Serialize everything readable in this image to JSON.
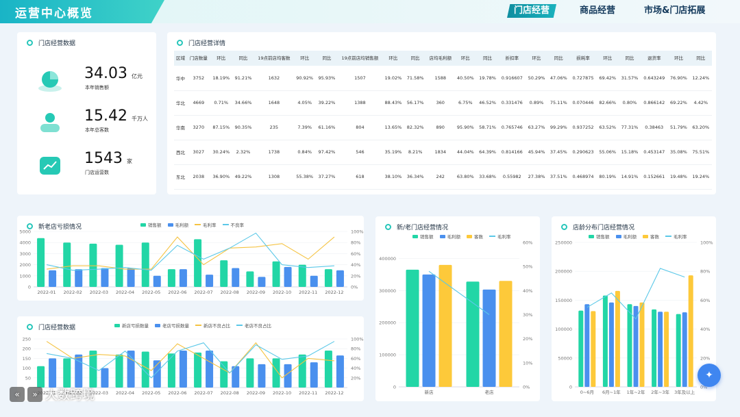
{
  "header": {
    "title": "运营中心概览",
    "nav": [
      "门店经营",
      "商品经营",
      "市场&门店拓展"
    ],
    "active_nav": 0
  },
  "store_data": {
    "title": "门店经营数据",
    "kpis": [
      {
        "value": "34.03",
        "unit": "亿元",
        "label": "本年销售额",
        "icon": "sales-icon"
      },
      {
        "value": "15.42",
        "unit": "千万人",
        "label": "本年总客数",
        "icon": "customers-icon"
      },
      {
        "value": "1543",
        "unit": "家",
        "label": "门店运营数",
        "icon": "stores-icon"
      }
    ]
  },
  "detail": {
    "title": "门店经营详情",
    "headers": [
      "区域",
      "门店数量",
      "环比",
      "同比",
      "19点前店均客数",
      "环比",
      "同比",
      "19点前店均销售额",
      "环比",
      "同比",
      "店均毛利额",
      "环比",
      "同比",
      "折扣率",
      "环比",
      "同比",
      "损耗率",
      "环比",
      "同比",
      "退货率",
      "环比",
      "同比"
    ],
    "rows": [
      [
        "华中",
        "3752",
        "18.19%",
        "91.21%",
        "1632",
        "90.92%",
        "95.93%",
        "1507",
        "19.02%",
        "71.58%",
        "1588",
        "40.50%",
        "19.78%",
        "0.916607",
        "50.29%",
        "47.06%",
        "0.727875",
        "69.42%",
        "31.57%",
        "0.643249",
        "76.90%",
        "12.24%"
      ],
      [
        "华北",
        "4669",
        "0.71%",
        "34.66%",
        "1648",
        "4.05%",
        "39.22%",
        "1388",
        "88.43%",
        "56.17%",
        "360",
        "6.75%",
        "46.52%",
        "0.331476",
        "0.89%",
        "75.11%",
        "0.070446",
        "82.66%",
        "0.80%",
        "0.866142",
        "69.22%",
        "4.42%"
      ],
      [
        "华南",
        "3270",
        "87.15%",
        "90.35%",
        "235",
        "7.39%",
        "61.16%",
        "804",
        "13.65%",
        "82.32%",
        "890",
        "95.90%",
        "58.71%",
        "0.765746",
        "63.27%",
        "99.29%",
        "0.937252",
        "63.52%",
        "77.31%",
        "0.38463",
        "51.79%",
        "63.20%"
      ],
      [
        "西北",
        "3027",
        "30.24%",
        "2.32%",
        "1738",
        "0.84%",
        "97.42%",
        "546",
        "35.19%",
        "8.21%",
        "1834",
        "44.04%",
        "64.39%",
        "0.814166",
        "45.94%",
        "37.45%",
        "0.290623",
        "55.06%",
        "15.18%",
        "0.453147",
        "35.08%",
        "75.51%"
      ],
      [
        "东北",
        "2038",
        "36.90%",
        "49.22%",
        "1308",
        "55.38%",
        "37.27%",
        "618",
        "38.10%",
        "36.34%",
        "242",
        "63.80%",
        "33.68%",
        "0.55982",
        "27.38%",
        "37.51%",
        "0.468974",
        "80.19%",
        "14.91%",
        "0.152661",
        "19.48%",
        "19.24%"
      ]
    ]
  },
  "chart_data": [
    {
      "type": "bar",
      "title": "新老店亏损情况",
      "categories": [
        "2022-01",
        "2022-02",
        "2022-03",
        "2022-04",
        "2022-05",
        "2022-06",
        "2022-07",
        "2022-08",
        "2022-09",
        "2022-10",
        "2022-11",
        "2022-12"
      ],
      "ylim": [
        0,
        5000
      ],
      "yticks": [
        "0",
        "1000",
        "2000",
        "3000",
        "4000",
        "5000"
      ],
      "y2lim": [
        0,
        100
      ],
      "y2ticks": [
        "0%",
        "20%",
        "40%",
        "60%",
        "80%",
        "100%"
      ],
      "series": [
        {
          "name": "销售额",
          "kind": "bar",
          "color": "#22d6a6",
          "values": [
            4400,
            4000,
            3900,
            3800,
            4000,
            1600,
            4300,
            2400,
            1400,
            2300,
            2000,
            1600
          ]
        },
        {
          "name": "毛利额",
          "kind": "bar",
          "color": "#4a90ee",
          "values": [
            1500,
            1600,
            1700,
            1700,
            1000,
            1600,
            1100,
            1700,
            900,
            1800,
            1000,
            1500
          ]
        },
        {
          "name": "毛利率",
          "kind": "line",
          "color": "#f5c342",
          "values": [
            32,
            38,
            38,
            32,
            32,
            90,
            40,
            70,
            72,
            78,
            50,
            90
          ]
        },
        {
          "name": "不良率",
          "kind": "line",
          "color": "#5bc8e8",
          "values": [
            40,
            30,
            32,
            35,
            30,
            75,
            50,
            70,
            97,
            40,
            35,
            38
          ]
        }
      ],
      "legend": [
        "销售额",
        "毛利额",
        "毛利率",
        "不良率"
      ]
    },
    {
      "type": "bar",
      "title": "门店经营数据",
      "categories": [
        "2022-01",
        "2022-02",
        "2022-03",
        "2022-04",
        "2022-05",
        "2022-06",
        "2022-07",
        "2022-08",
        "2022-09",
        "2022-10",
        "2022-11",
        "2022-12"
      ],
      "ylim": [
        0,
        250
      ],
      "yticks": [
        "50",
        "100",
        "150",
        "200",
        "250"
      ],
      "y2lim": [
        0,
        100
      ],
      "y2ticks": [
        "20%",
        "40%",
        "60%",
        "80%",
        "100%"
      ],
      "series": [
        {
          "name": "新店亏损数量",
          "kind": "bar",
          "color": "#22d6a6",
          "values": [
            110,
            150,
            190,
            170,
            185,
            175,
            180,
            135,
            150,
            150,
            170,
            190
          ]
        },
        {
          "name": "老店亏损数量",
          "kind": "bar",
          "color": "#4a90ee",
          "values": [
            150,
            170,
            100,
            190,
            140,
            190,
            190,
            110,
            120,
            120,
            130,
            165
          ]
        },
        {
          "name": "新店不良占比",
          "kind": "line",
          "color": "#f5c342",
          "values": [
            95,
            60,
            68,
            65,
            35,
            90,
            60,
            30,
            92,
            20,
            60,
            55
          ]
        },
        {
          "name": "老店不良占比",
          "kind": "line",
          "color": "#5bc8e8",
          "values": [
            70,
            60,
            35,
            75,
            20,
            75,
            92,
            30,
            88,
            58,
            65,
            95
          ]
        }
      ],
      "legend": [
        "新店亏损数量",
        "老店亏损数量",
        "新店不良占比",
        "老店不良占比"
      ]
    },
    {
      "type": "bar",
      "title": "新/老门店经营情况",
      "categories": [
        "新店",
        "老店"
      ],
      "ylim": [
        0,
        450000
      ],
      "yticks": [
        "0",
        "100000",
        "200000",
        "300000",
        "400000"
      ],
      "y2lim": [
        0,
        60
      ],
      "y2ticks": [
        "0%",
        "10%",
        "20%",
        "30%",
        "40%",
        "50%",
        "60%"
      ],
      "series": [
        {
          "name": "销售额",
          "kind": "bar",
          "color": "#22d6a6",
          "values": [
            365000,
            328000
          ]
        },
        {
          "name": "毛利额",
          "kind": "bar",
          "color": "#4a90ee",
          "values": [
            350000,
            303000
          ]
        },
        {
          "name": "客数",
          "kind": "bar",
          "color": "#fdc93a",
          "values": [
            380000,
            330000
          ]
        },
        {
          "name": "毛利率",
          "kind": "line",
          "color": "#5bc8e8",
          "values": [
            48,
            30
          ]
        }
      ],
      "legend": [
        "销售额",
        "毛利额",
        "客数",
        "毛利率"
      ]
    },
    {
      "type": "bar",
      "title": "店龄分布门店经营情况",
      "categories": [
        "0~6月",
        "6月~1年",
        "1年~2年",
        "2年~3年",
        "3年及以上"
      ],
      "ylim": [
        0,
        250000
      ],
      "yticks": [
        "0",
        "50000",
        "100000",
        "150000",
        "200000",
        "250000"
      ],
      "y2lim": [
        0,
        100
      ],
      "y2ticks": [
        "0%",
        "20%",
        "40%",
        "60%",
        "80%",
        "100%"
      ],
      "series": [
        {
          "name": "销售额",
          "kind": "bar",
          "color": "#22d6a6",
          "values": [
            132000,
            158000,
            143000,
            134000,
            126000
          ]
        },
        {
          "name": "毛利额",
          "kind": "bar",
          "color": "#4a90ee",
          "values": [
            143000,
            146000,
            140000,
            130000,
            129000
          ]
        },
        {
          "name": "客数",
          "kind": "bar",
          "color": "#fdc93a",
          "values": [
            131000,
            166000,
            146000,
            130000,
            193000
          ]
        },
        {
          "name": "毛利率",
          "kind": "line",
          "color": "#5bc8e8",
          "values": [
            55,
            65,
            47,
            82,
            76
          ]
        }
      ],
      "legend": [
        "销售额",
        "毛利额",
        "客数",
        "毛利率"
      ]
    }
  ],
  "watermark": "大数跨境",
  "fab_icon": "assistant-icon"
}
